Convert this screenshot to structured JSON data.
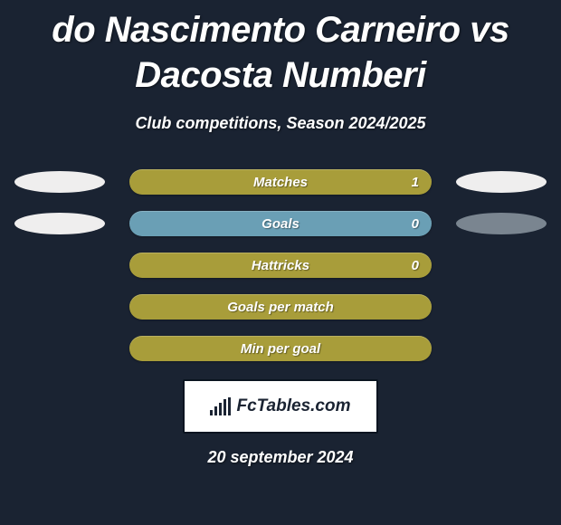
{
  "title": "do Nascimento Carneiro vs Dacosta Numberi",
  "subtitle": "Club competitions, Season 2024/2025",
  "date": "20 september 2024",
  "logo_text": "FcTables.com",
  "colors": {
    "background": "#1a2332",
    "bar_default": "#a89d3a",
    "bar_alt": "#6a9fb5",
    "pill_white": "#efeeee",
    "pill_grey": "#7a8590",
    "text": "#ffffff"
  },
  "rows": [
    {
      "label": "Matches",
      "value": "1",
      "bar_color": "#a89d3a",
      "left_pill": "#efeeee",
      "right_pill": "#efeeee"
    },
    {
      "label": "Goals",
      "value": "0",
      "bar_color": "#6a9fb5",
      "left_pill": "#efeeee",
      "right_pill": "#7a8590"
    },
    {
      "label": "Hattricks",
      "value": "0",
      "bar_color": "#a89d3a",
      "left_pill": null,
      "right_pill": null
    },
    {
      "label": "Goals per match",
      "value": "",
      "bar_color": "#a89d3a",
      "left_pill": null,
      "right_pill": null
    },
    {
      "label": "Min per goal",
      "value": "",
      "bar_color": "#a89d3a",
      "left_pill": null,
      "right_pill": null
    }
  ]
}
